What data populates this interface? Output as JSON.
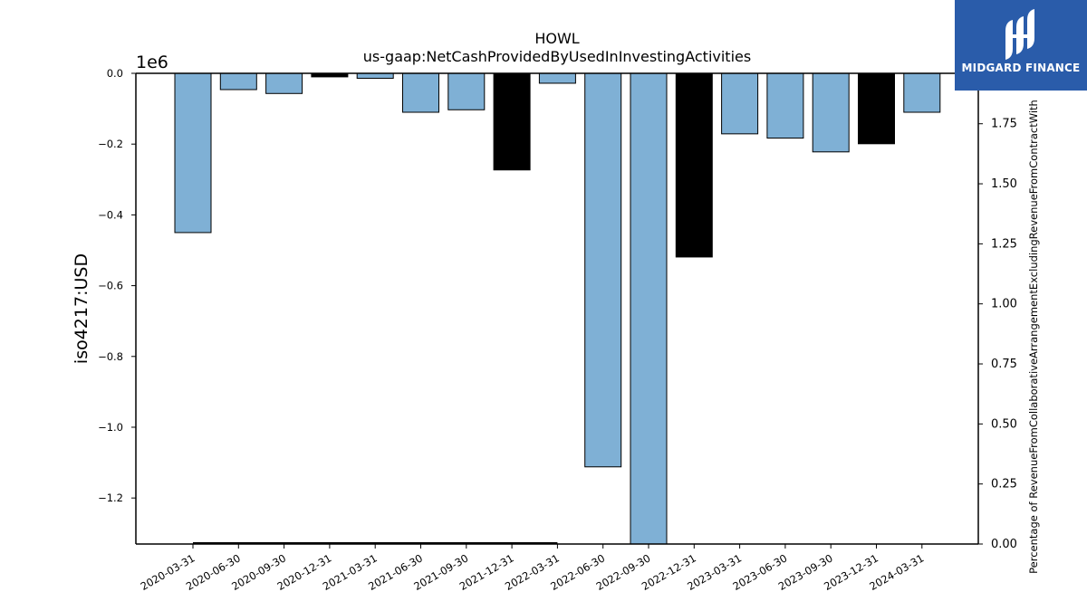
{
  "chart_data": {
    "type": "bar",
    "title": "HOWL",
    "subtitle": "us-gaap:NetCashProvidedByUsedInInvestingActivities",
    "ylabel": "iso4217:USD",
    "y_offset_label": "1e6",
    "y2label": "Percentage of RevenueFromCollaborativeArrangementExcludingRevenueFromContractWith",
    "ylim": [
      -1.33,
      0.0
    ],
    "y2lim": [
      0.0,
      1.96
    ],
    "yticks": [
      "0.0",
      "−0.2",
      "−0.4",
      "−0.6",
      "−0.8",
      "−1.0",
      "−1.2"
    ],
    "y2ticks": [
      "0.00",
      "0.25",
      "0.50",
      "0.75",
      "1.00",
      "1.25",
      "1.50",
      "1.75"
    ],
    "categories": [
      "2020-03-31",
      "2020-06-30",
      "2020-09-30",
      "2020-12-31",
      "2021-03-31",
      "2021-06-30",
      "2021-09-30",
      "2021-12-31",
      "2022-03-31",
      "2022-06-30",
      "2022-09-30",
      "2022-12-31",
      "2023-03-31",
      "2023-06-30",
      "2023-09-30",
      "2023-12-31",
      "2024-03-31"
    ],
    "values": [
      -0.45,
      -0.046,
      -0.057,
      -0.01,
      -0.014,
      -0.11,
      -0.103,
      -0.273,
      -0.028,
      -1.112,
      -1.33,
      -0.519,
      -0.171,
      -0.183,
      -0.222,
      -0.199,
      -0.11
    ],
    "bar_colors": [
      "#7fb0d5",
      "#7fb0d5",
      "#7fb0d5",
      "#000000",
      "#7fb0d5",
      "#7fb0d5",
      "#7fb0d5",
      "#000000",
      "#7fb0d5",
      "#7fb0d5",
      "#7fb0d5",
      "#000000",
      "#7fb0d5",
      "#7fb0d5",
      "#7fb0d5",
      "#000000",
      "#7fb0d5"
    ],
    "secondary_line": {
      "x_start": "2020-03-31",
      "x_end": "2022-03-31",
      "value": 0.0
    },
    "grid": false,
    "legend": "none"
  },
  "logo": {
    "text": "MIDGARD FINANCE",
    "background": "#2a5caa"
  }
}
